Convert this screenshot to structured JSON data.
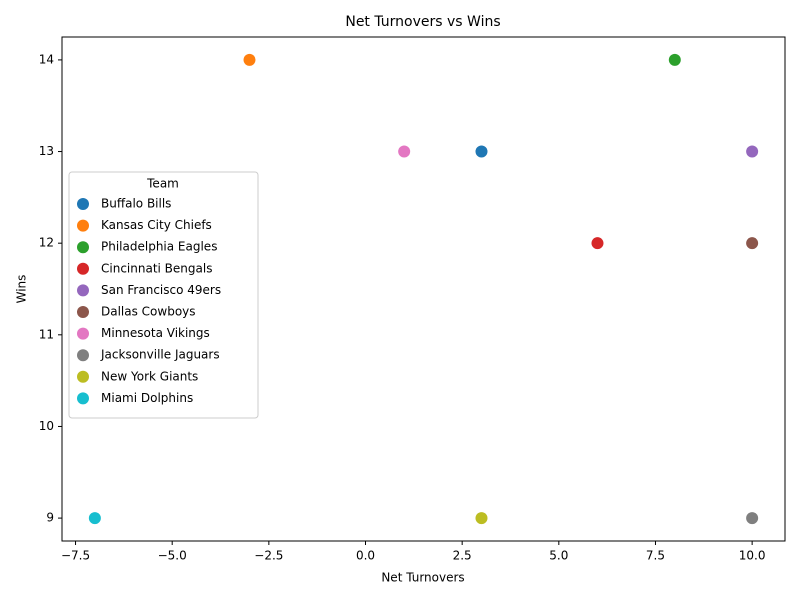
{
  "chart_data": {
    "type": "scatter",
    "title": "Net Turnovers vs Wins",
    "x_label": "Net Turnovers",
    "y_label": "Wins",
    "legend_title": "Team",
    "legend_position": "center left",
    "xlim": [
      -7.85,
      10.85
    ],
    "ylim": [
      8.75,
      14.25
    ],
    "xticks": [
      {
        "value": -7.5,
        "label": "−7.5"
      },
      {
        "value": -5,
        "label": "−5.0"
      },
      {
        "value": -2.5,
        "label": "−2.5"
      },
      {
        "value": 0,
        "label": "0.0"
      },
      2.5,
      {
        "value": 5,
        "label": "5.0"
      },
      7.5,
      {
        "value": 10,
        "label": "10.0"
      }
    ],
    "yticks": [
      9,
      10,
      11,
      12,
      13,
      14
    ],
    "series": [
      {
        "name": "Buffalo Bills",
        "color": "#1f77b4",
        "x": [
          3
        ],
        "values": [
          13
        ]
      },
      {
        "name": "Kansas City Chiefs",
        "color": "#ff7f0e",
        "x": [
          -3
        ],
        "values": [
          14
        ]
      },
      {
        "name": "Philadelphia Eagles",
        "color": "#2ca02c",
        "x": [
          8
        ],
        "values": [
          14
        ]
      },
      {
        "name": "Cincinnati Bengals",
        "color": "#d62728",
        "x": [
          6
        ],
        "values": [
          12
        ]
      },
      {
        "name": "San Francisco 49ers",
        "color": "#9467bd",
        "x": [
          10
        ],
        "values": [
          13
        ]
      },
      {
        "name": "Dallas Cowboys",
        "color": "#8c564b",
        "x": [
          10
        ],
        "values": [
          12
        ]
      },
      {
        "name": "Minnesota Vikings",
        "color": "#e377c2",
        "x": [
          1
        ],
        "values": [
          13
        ]
      },
      {
        "name": "Jacksonville Jaguars",
        "color": "#7f7f7f",
        "x": [
          10
        ],
        "values": [
          9
        ]
      },
      {
        "name": "New York Giants",
        "color": "#bcbd22",
        "x": [
          3
        ],
        "values": [
          9
        ]
      },
      {
        "name": "Miami Dolphins",
        "color": "#17becf",
        "x": [
          -7
        ],
        "values": [
          9
        ]
      }
    ]
  }
}
